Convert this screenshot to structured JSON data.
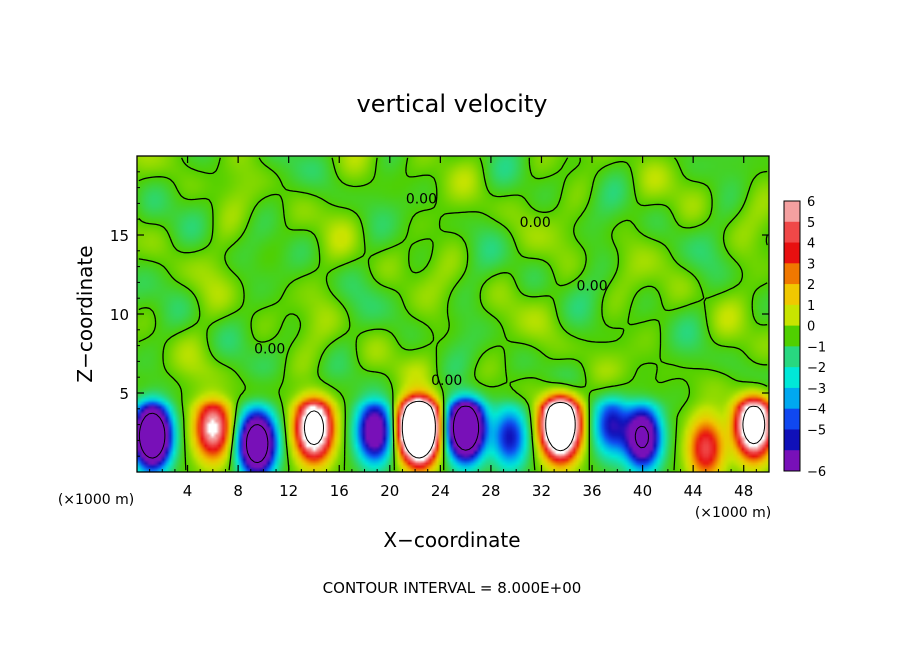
{
  "chart_data": {
    "type": "heatmap",
    "title": "vertical velocity",
    "xlabel": "X−coordinate",
    "ylabel": "Z−coordinate",
    "x_unit_left": "(×1000 m)",
    "x_unit_right": "(×1000 m)",
    "footer": "CONTOUR INTERVAL = 8.000E+00",
    "xlim": [
      0,
      50
    ],
    "ylim": [
      0,
      20
    ],
    "x_ticks": [
      4,
      8,
      12,
      16,
      20,
      24,
      28,
      32,
      36,
      40,
      44,
      48
    ],
    "x_tick_labels": [
      "4",
      "8",
      "12",
      "16",
      "20",
      "24",
      "28",
      "32",
      "36",
      "40",
      "44",
      "48"
    ],
    "y_ticks": [
      5,
      10,
      15
    ],
    "y_tick_labels": [
      "5",
      "10",
      "15"
    ],
    "contour_labels": [
      {
        "text": "0.00",
        "x": 10.5,
        "y": 7.5
      },
      {
        "text": "0.00",
        "x": 22.5,
        "y": 17.0
      },
      {
        "text": "0.00",
        "x": 31.5,
        "y": 15.5
      },
      {
        "text": "0.00",
        "x": 36.0,
        "y": 11.5
      },
      {
        "text": "0.00",
        "x": 24.5,
        "y": 5.5
      }
    ],
    "colorbar": {
      "levels": [
        6,
        5,
        4,
        3,
        2,
        1,
        0,
        -1,
        -2,
        -3,
        -4,
        -5,
        -6
      ],
      "labels": [
        "6",
        "5",
        "4",
        "3",
        "2",
        "1",
        "0",
        "−1",
        "−2",
        "−3",
        "−4",
        "−5",
        "−6"
      ],
      "colors": [
        "#f4a0a0",
        "#f04848",
        "#e81010",
        "#f07800",
        "#f0c800",
        "#c8e400",
        "#50d000",
        "#28d880",
        "#00e8d8",
        "#00a8f0",
        "#1048f0",
        "#1010b8",
        "#7810b8"
      ]
    },
    "cells": [
      {
        "x": 1.2,
        "y": 2.3,
        "w": -14
      },
      {
        "x": 6.0,
        "y": 2.8,
        "w": 7
      },
      {
        "x": 9.5,
        "y": 1.8,
        "w": -12
      },
      {
        "x": 14.0,
        "y": 2.8,
        "w": 11
      },
      {
        "x": 18.8,
        "y": 2.6,
        "w": -8
      },
      {
        "x": 22.3,
        "y": 2.8,
        "w": 22
      },
      {
        "x": 26.0,
        "y": 2.8,
        "w": -14
      },
      {
        "x": 29.5,
        "y": 2.2,
        "w": -5
      },
      {
        "x": 33.5,
        "y": 3.0,
        "w": 17
      },
      {
        "x": 37.5,
        "y": 3.0,
        "w": -5
      },
      {
        "x": 40.0,
        "y": 2.2,
        "w": -9
      },
      {
        "x": 45.0,
        "y": 1.5,
        "w": 5
      },
      {
        "x": 48.8,
        "y": 3.0,
        "w": 12
      }
    ],
    "grid": false,
    "legend": "colorbar-right"
  }
}
